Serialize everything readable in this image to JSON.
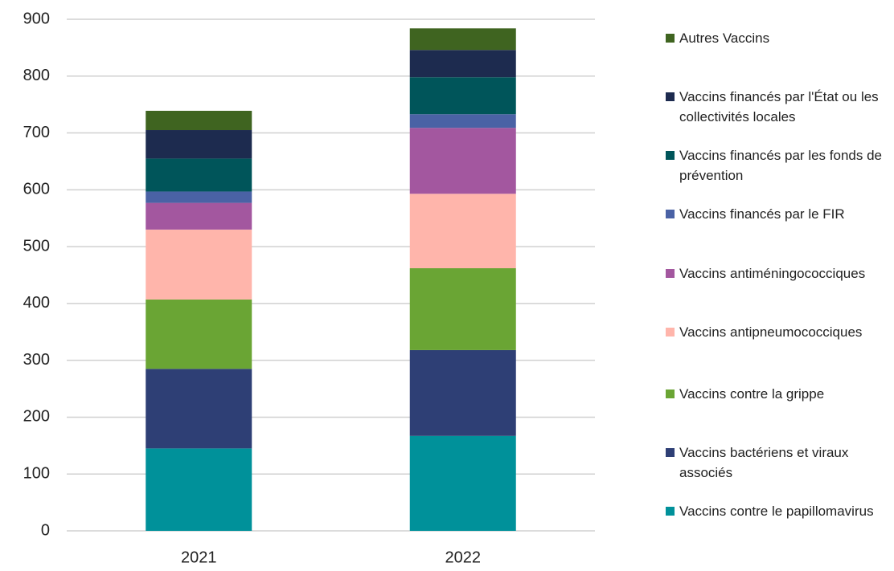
{
  "chart_data": {
    "type": "stacked_bar",
    "categories": [
      "2021",
      "2022"
    ],
    "series": [
      {
        "name": "Vaccins contre le papillomavirus",
        "color": "#00919a",
        "values": [
          145,
          167
        ]
      },
      {
        "name": "Vaccins bactériens et viraux associés",
        "color": "#2e3f75",
        "values": [
          140,
          151
        ]
      },
      {
        "name": "Vaccins contre la grippe",
        "color": "#6aa534",
        "values": [
          122,
          144
        ]
      },
      {
        "name": "Vaccins antipneumococciques",
        "color": "#ffb5ab",
        "values": [
          123,
          131
        ]
      },
      {
        "name": "Vaccins antiméningococciques",
        "color": "#a3579f",
        "values": [
          47,
          116
        ]
      },
      {
        "name": "Vaccins financés par le FIR",
        "color": "#4a62a5",
        "values": [
          20,
          24
        ]
      },
      {
        "name": "Vaccins financés par les fonds de prévention",
        "color": "#00555a",
        "values": [
          58,
          65
        ]
      },
      {
        "name": "Vaccins financés par l'État ou les collectivités locales",
        "color": "#1d2b4f",
        "values": [
          50,
          48
        ]
      },
      {
        "name": "Autres Vaccins",
        "color": "#3f6420",
        "values": [
          34,
          38
        ]
      }
    ],
    "ylim": [
      0,
      900
    ],
    "yticks": [
      0,
      100,
      200,
      300,
      400,
      500,
      600,
      700,
      800,
      900
    ],
    "grid": true,
    "legend": "right"
  }
}
